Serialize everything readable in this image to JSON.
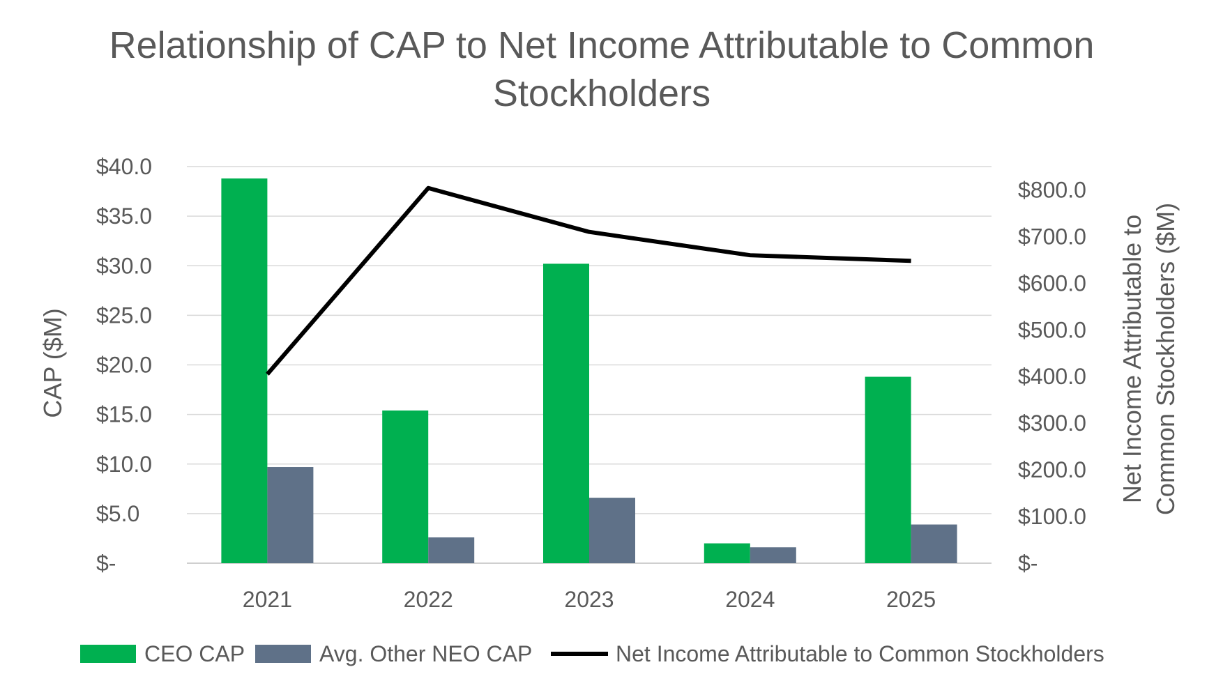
{
  "chart_data": {
    "type": "bar",
    "title_lines": [
      "Relationship of CAP to Net Income Attributable to Common",
      "Stockholders"
    ],
    "categories": [
      "2021",
      "2022",
      "2023",
      "2024",
      "2025"
    ],
    "series": [
      {
        "name": "CEO CAP",
        "kind": "bar",
        "axis": "left",
        "color": "#00B050",
        "values": [
          38.8,
          15.4,
          30.2,
          2.0,
          18.8
        ]
      },
      {
        "name": "Avg. Other NEO CAP",
        "kind": "bar",
        "axis": "left",
        "color": "#5F7188",
        "values": [
          9.7,
          2.6,
          6.6,
          1.6,
          3.9
        ]
      },
      {
        "name": "Net Income Attributable to Common Stockholders",
        "kind": "line",
        "axis": "right",
        "color": "#000000",
        "values": [
          405,
          804,
          710,
          660,
          648
        ]
      }
    ],
    "y_left": {
      "label": "CAP ($M)",
      "min": 0,
      "max": 40,
      "ticks": [
        0,
        5,
        10,
        15,
        20,
        25,
        30,
        35,
        40
      ],
      "tick_labels": [
        "$-",
        "$5.0",
        "$10.0",
        "$15.0",
        "$20.0",
        "$25.0",
        "$30.0",
        "$35.0",
        "$40.0"
      ]
    },
    "y_right": {
      "label_lines": [
        "Net Income Attributable to",
        "Common Stockholders ($M)"
      ],
      "min": 0,
      "max": 850,
      "ticks": [
        0,
        100,
        200,
        300,
        400,
        500,
        600,
        700,
        800
      ],
      "tick_labels": [
        "$-",
        "$100.0",
        "$200.0",
        "$300.0",
        "$400.0",
        "$500.0",
        "$600.0",
        "$700.0",
        "$800.0"
      ]
    },
    "grid": true,
    "legend_position": "bottom"
  }
}
